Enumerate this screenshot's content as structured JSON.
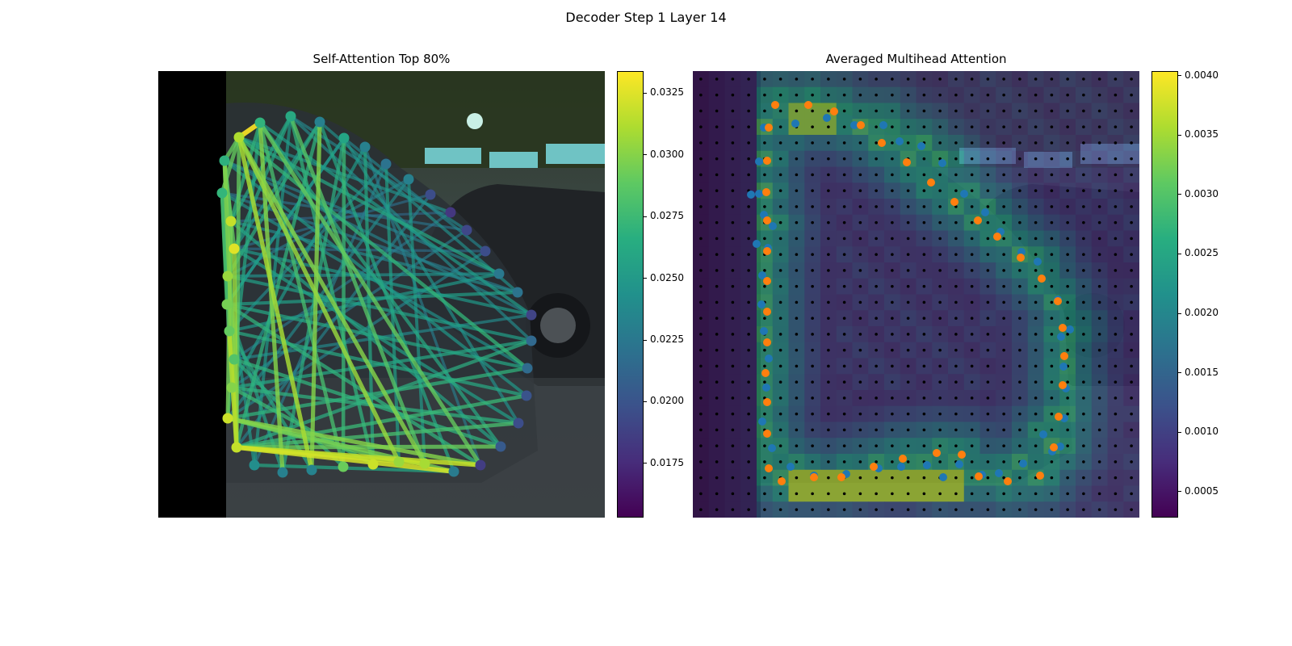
{
  "suptitle": "Decoder Step 1 Layer 14",
  "chart_data": [
    {
      "type": "scatter",
      "title": "Self-Attention Top 80%",
      "description_kind": "image overlay with contour points and attention edges",
      "colormap": "viridis",
      "colorbar": {
        "range": [
          0.0153,
          0.0334
        ],
        "ticks": [
          "0.0175",
          "0.0200",
          "0.0225",
          "0.0250",
          "0.0275",
          "0.0300",
          "0.0325"
        ],
        "tick_values": [
          0.0175,
          0.02,
          0.0225,
          0.025,
          0.0275,
          0.03,
          0.0325
        ]
      },
      "points": [
        {
          "x": 100,
          "y": 82,
          "v": 0.0312
        },
        {
          "x": 126,
          "y": 64,
          "v": 0.027
        },
        {
          "x": 164,
          "y": 56,
          "v": 0.0262
        },
        {
          "x": 200,
          "y": 63,
          "v": 0.0232
        },
        {
          "x": 230,
          "y": 83,
          "v": 0.0258
        },
        {
          "x": 256,
          "y": 94,
          "v": 0.0232
        },
        {
          "x": 282,
          "y": 115,
          "v": 0.0222
        },
        {
          "x": 310,
          "y": 134,
          "v": 0.0232
        },
        {
          "x": 337,
          "y": 153,
          "v": 0.0196
        },
        {
          "x": 362,
          "y": 175,
          "v": 0.0182
        },
        {
          "x": 382,
          "y": 197,
          "v": 0.0192
        },
        {
          "x": 405,
          "y": 223,
          "v": 0.0196
        },
        {
          "x": 422,
          "y": 251,
          "v": 0.0226
        },
        {
          "x": 445,
          "y": 274,
          "v": 0.0222
        },
        {
          "x": 462,
          "y": 302,
          "v": 0.019
        },
        {
          "x": 462,
          "y": 334,
          "v": 0.0214
        },
        {
          "x": 457,
          "y": 368,
          "v": 0.0216
        },
        {
          "x": 456,
          "y": 402,
          "v": 0.02
        },
        {
          "x": 446,
          "y": 436,
          "v": 0.0196
        },
        {
          "x": 424,
          "y": 465,
          "v": 0.0204
        },
        {
          "x": 399,
          "y": 488,
          "v": 0.0186
        },
        {
          "x": 366,
          "y": 496,
          "v": 0.0228
        },
        {
          "x": 330,
          "y": 486,
          "v": 0.031
        },
        {
          "x": 298,
          "y": 484,
          "v": 0.0306
        },
        {
          "x": 266,
          "y": 487,
          "v": 0.032
        },
        {
          "x": 229,
          "y": 490,
          "v": 0.0292
        },
        {
          "x": 190,
          "y": 494,
          "v": 0.0234
        },
        {
          "x": 154,
          "y": 497,
          "v": 0.0232
        },
        {
          "x": 119,
          "y": 488,
          "v": 0.0242
        },
        {
          "x": 97,
          "y": 466,
          "v": 0.0318
        },
        {
          "x": 86,
          "y": 430,
          "v": 0.032
        },
        {
          "x": 91,
          "y": 392,
          "v": 0.03
        },
        {
          "x": 94,
          "y": 357,
          "v": 0.0284
        },
        {
          "x": 88,
          "y": 322,
          "v": 0.029
        },
        {
          "x": 85,
          "y": 289,
          "v": 0.0296
        },
        {
          "x": 86,
          "y": 254,
          "v": 0.0306
        },
        {
          "x": 94,
          "y": 220,
          "v": 0.0326
        },
        {
          "x": 90,
          "y": 186,
          "v": 0.0318
        },
        {
          "x": 79,
          "y": 151,
          "v": 0.0272
        },
        {
          "x": 82,
          "y": 111,
          "v": 0.0268
        }
      ],
      "edges": [
        [
          0,
          1,
          0.0334
        ],
        [
          0,
          22,
          0.03
        ],
        [
          0,
          29,
          0.029
        ],
        [
          0,
          26,
          0.031
        ],
        [
          0,
          23,
          0.0305
        ],
        [
          0,
          16,
          0.0272
        ],
        [
          1,
          20,
          0.029
        ],
        [
          1,
          25,
          0.028
        ],
        [
          1,
          27,
          0.03
        ],
        [
          1,
          30,
          0.026
        ],
        [
          1,
          19,
          0.0262
        ],
        [
          2,
          28,
          0.025
        ],
        [
          2,
          24,
          0.027
        ],
        [
          2,
          22,
          0.0285
        ],
        [
          2,
          15,
          0.024
        ],
        [
          2,
          37,
          0.026
        ],
        [
          3,
          26,
          0.03
        ],
        [
          3,
          21,
          0.026
        ],
        [
          3,
          29,
          0.027
        ],
        [
          3,
          36,
          0.025
        ],
        [
          4,
          25,
          0.0275
        ],
        [
          4,
          27,
          0.0265
        ],
        [
          4,
          18,
          0.0245
        ],
        [
          4,
          34,
          0.024
        ],
        [
          5,
          24,
          0.026
        ],
        [
          5,
          31,
          0.025
        ],
        [
          5,
          20,
          0.023
        ],
        [
          6,
          33,
          0.024
        ],
        [
          6,
          28,
          0.023
        ],
        [
          6,
          23,
          0.0255
        ],
        [
          7,
          35,
          0.023
        ],
        [
          7,
          30,
          0.024
        ],
        [
          7,
          22,
          0.025
        ],
        [
          8,
          36,
          0.022
        ],
        [
          8,
          29,
          0.0235
        ],
        [
          9,
          37,
          0.0215
        ],
        [
          9,
          32,
          0.0225
        ],
        [
          10,
          38,
          0.0225
        ],
        [
          10,
          31,
          0.023
        ],
        [
          11,
          36,
          0.022
        ],
        [
          11,
          30,
          0.0235
        ],
        [
          12,
          35,
          0.0245
        ],
        [
          12,
          33,
          0.025
        ],
        [
          12,
          39,
          0.0235
        ],
        [
          13,
          34,
          0.0255
        ],
        [
          13,
          37,
          0.024
        ],
        [
          13,
          38,
          0.023
        ],
        [
          14,
          32,
          0.024
        ],
        [
          14,
          36,
          0.025
        ],
        [
          14,
          39,
          0.0235
        ],
        [
          15,
          31,
          0.026
        ],
        [
          15,
          35,
          0.0255
        ],
        [
          15,
          29,
          0.0265
        ],
        [
          16,
          30,
          0.027
        ],
        [
          16,
          34,
          0.026
        ],
        [
          16,
          38,
          0.0245
        ],
        [
          17,
          29,
          0.0275
        ],
        [
          17,
          33,
          0.0262
        ],
        [
          17,
          39,
          0.025
        ],
        [
          18,
          29,
          0.028
        ],
        [
          18,
          31,
          0.0268
        ],
        [
          18,
          36,
          0.0255
        ],
        [
          19,
          29,
          0.0292
        ],
        [
          19,
          32,
          0.027
        ],
        [
          19,
          37,
          0.0258
        ],
        [
          20,
          29,
          0.0318
        ],
        [
          20,
          30,
          0.03
        ],
        [
          20,
          34,
          0.027
        ],
        [
          21,
          29,
          0.0322
        ],
        [
          21,
          30,
          0.0296
        ],
        [
          21,
          28,
          0.026
        ],
        [
          22,
          29,
          0.0318
        ],
        [
          23,
          30,
          0.029
        ],
        [
          24,
          31,
          0.0275
        ],
        [
          25,
          32,
          0.0265
        ],
        [
          26,
          33,
          0.0262
        ],
        [
          27,
          34,
          0.0258
        ],
        [
          28,
          35,
          0.025
        ],
        [
          29,
          39,
          0.03
        ],
        [
          29,
          36,
          0.0305
        ],
        [
          29,
          33,
          0.0315
        ],
        [
          30,
          37,
          0.0295
        ],
        [
          31,
          38,
          0.028
        ],
        [
          32,
          39,
          0.027
        ],
        [
          33,
          37,
          0.0285
        ],
        [
          34,
          38,
          0.028
        ],
        [
          35,
          39,
          0.027
        ],
        [
          36,
          39,
          0.029
        ],
        [
          37,
          39,
          0.0285
        ],
        [
          0,
          9,
          0.0245
        ],
        [
          0,
          12,
          0.026
        ],
        [
          1,
          14,
          0.0252
        ],
        [
          2,
          10,
          0.0238
        ],
        [
          3,
          13,
          0.0244
        ],
        [
          4,
          11,
          0.0236
        ],
        [
          0,
          39,
          0.029
        ],
        [
          38,
          0,
          0.029
        ],
        [
          37,
          1,
          0.027
        ],
        [
          36,
          2,
          0.026
        ],
        [
          35,
          3,
          0.0265
        ],
        [
          34,
          4,
          0.025
        ]
      ]
    },
    {
      "type": "heatmap",
      "title": "Averaged Multihead Attention",
      "colormap": "viridis",
      "colorbar": {
        "range": [
          0.00028,
          0.00404
        ],
        "ticks": [
          "0.0005",
          "0.0010",
          "0.0015",
          "0.0020",
          "0.0025",
          "0.0030",
          "0.0035",
          "0.0040"
        ],
        "tick_values": [
          0.0005,
          0.001,
          0.0015,
          0.002,
          0.0025,
          0.003,
          0.0035,
          0.004
        ]
      },
      "grid": {
        "rows": 28,
        "cols": 28
      },
      "series": [
        {
          "name": "",
          "color": "#1f77b4",
          "points": [
            [
              88,
              70
            ],
            [
              127,
              65
            ],
            [
              166,
              58
            ],
            [
              200,
              67
            ],
            [
              236,
              67
            ],
            [
              256,
              87
            ],
            [
              283,
              93
            ],
            [
              309,
              114
            ],
            [
              336,
              152
            ],
            [
              362,
              175
            ],
            [
              381,
              199
            ],
            [
              407,
              224
            ],
            [
              427,
              236
            ],
            [
              452,
              283
            ],
            [
              467,
              320
            ],
            [
              456,
              329
            ],
            [
              459,
              366
            ],
            [
              462,
              393
            ],
            [
              460,
              430
            ],
            [
              455,
              465
            ],
            [
              445,
              471
            ],
            [
              434,
              450
            ],
            [
              409,
              486
            ],
            [
              379,
              498
            ],
            [
              358,
              500
            ],
            [
              330,
              487
            ],
            [
              310,
              503
            ],
            [
              290,
              488
            ],
            [
              258,
              490
            ],
            [
              230,
              492
            ],
            [
              190,
              499
            ],
            [
              150,
              501
            ],
            [
              121,
              490
            ],
            [
              98,
              467
            ],
            [
              86,
              434
            ],
            [
              91,
              392
            ],
            [
              94,
              356
            ],
            [
              88,
              322
            ],
            [
              85,
              289
            ],
            [
              86,
              253
            ],
            [
              93,
              219
            ],
            [
              82,
              152
            ],
            [
              82,
              112
            ],
            [
              72,
              153
            ],
            [
              88,
              178
            ],
            [
              99,
              192
            ],
            [
              79,
              214
            ]
          ]
        },
        {
          "name": "",
          "color": "#ff7f0e",
          "points": [
            [
              102,
              42
            ],
            [
              143,
              42
            ],
            [
              175,
              50
            ],
            [
              208,
              67
            ],
            [
              234,
              89
            ],
            [
              265,
              113
            ],
            [
              295,
              138
            ],
            [
              324,
              162
            ],
            [
              353,
              185
            ],
            [
              377,
              205
            ],
            [
              406,
              231
            ],
            [
              432,
              257
            ],
            [
              452,
              285
            ],
            [
              458,
              318
            ],
            [
              460,
              353
            ],
            [
              458,
              389
            ],
            [
              453,
              428
            ],
            [
              447,
              466
            ],
            [
              430,
              501
            ],
            [
              390,
              508
            ],
            [
              354,
              502
            ],
            [
              333,
              475
            ],
            [
              302,
              473
            ],
            [
              260,
              480
            ],
            [
              224,
              490
            ],
            [
              184,
              503
            ],
            [
              150,
              503
            ],
            [
              110,
              508
            ],
            [
              94,
              492
            ],
            [
              92,
              449
            ],
            [
              92,
              410
            ],
            [
              90,
              374
            ],
            [
              92,
              336
            ],
            [
              92,
              298
            ],
            [
              92,
              260
            ],
            [
              92,
              223
            ],
            [
              92,
              185
            ],
            [
              91,
              150
            ],
            [
              92,
              111
            ],
            [
              94,
              70
            ]
          ]
        }
      ]
    }
  ]
}
